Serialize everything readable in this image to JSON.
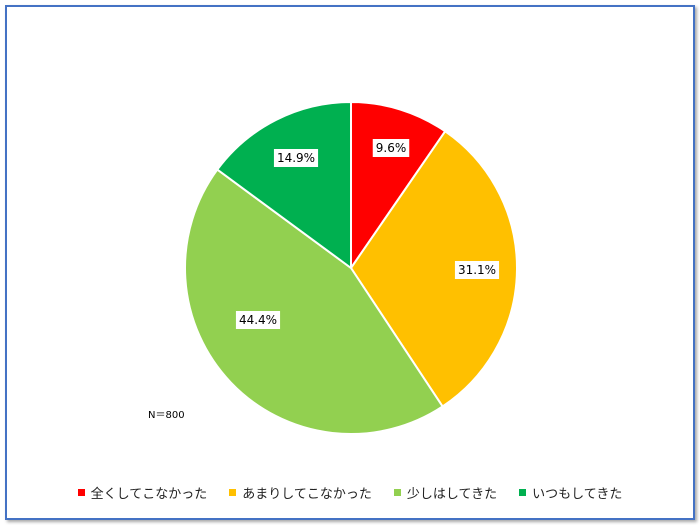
{
  "chart_data": {
    "type": "pie",
    "categories": [
      "全くしてこなかった",
      "あまりしてこなかった",
      "少しはしてきた",
      "いつもしてきた"
    ],
    "values": [
      9.6,
      31.1,
      44.4,
      14.9
    ],
    "value_labels": [
      "9.6%",
      "31.1%",
      "44.4%",
      "14.9%"
    ],
    "colors": [
      "#ff0000",
      "#ffc000",
      "#92d050",
      "#00b050"
    ],
    "start": "12 o'clock",
    "direction": "clockwise",
    "legend_position": "bottom",
    "note": "N＝800"
  }
}
